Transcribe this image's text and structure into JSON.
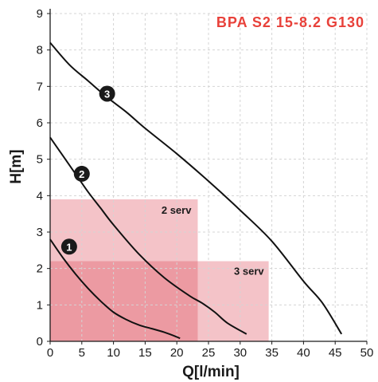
{
  "chart_data": {
    "type": "line",
    "title": "BPA S2 15-8.2 G130",
    "xlabel": "Q[l/min]",
    "ylabel": "H[m]",
    "xlim": [
      0,
      50
    ],
    "ylim": [
      0,
      9
    ],
    "xticks": [
      0,
      5,
      10,
      15,
      20,
      25,
      30,
      35,
      40,
      45,
      50
    ],
    "yticks": [
      0,
      1,
      2,
      3,
      4,
      5,
      6,
      7,
      8,
      9
    ],
    "grid": true,
    "colors": {
      "title": "#e8413a",
      "curve": "#111111",
      "zone_2serv": "#f4c3c8",
      "zone_3serv": "#f4c3c8",
      "zone_overlap": "#ec9aa2",
      "marker": "#1a1a1a"
    },
    "zones": [
      {
        "label": "2 serv",
        "x_max": 23.3,
        "y_max": 3.9
      },
      {
        "label": "3 serv",
        "x_max": 34.5,
        "y_max": 2.2
      }
    ],
    "series": [
      {
        "name": "1",
        "marker_at": [
          3,
          2.6
        ],
        "points": [
          [
            0,
            2.8
          ],
          [
            2,
            2.3
          ],
          [
            4,
            1.85
          ],
          [
            6,
            1.45
          ],
          [
            8,
            1.1
          ],
          [
            10,
            0.8
          ],
          [
            12,
            0.6
          ],
          [
            14,
            0.45
          ],
          [
            16,
            0.35
          ],
          [
            18,
            0.25
          ],
          [
            20,
            0.12
          ],
          [
            20.5,
            0.08
          ]
        ]
      },
      {
        "name": "2",
        "marker_at": [
          5,
          4.6
        ],
        "points": [
          [
            0,
            5.6
          ],
          [
            2,
            5.1
          ],
          [
            4,
            4.6
          ],
          [
            6,
            4.1
          ],
          [
            8,
            3.65
          ],
          [
            10,
            3.2
          ],
          [
            14,
            2.4
          ],
          [
            18,
            1.75
          ],
          [
            22,
            1.25
          ],
          [
            24,
            1.05
          ],
          [
            26,
            0.8
          ],
          [
            28,
            0.5
          ],
          [
            31,
            0.2
          ]
        ]
      },
      {
        "name": "3",
        "marker_at": [
          9,
          6.8
        ],
        "points": [
          [
            0,
            8.2
          ],
          [
            3,
            7.6
          ],
          [
            6,
            7.15
          ],
          [
            9,
            6.7
          ],
          [
            12,
            6.3
          ],
          [
            15,
            5.85
          ],
          [
            20,
            5.15
          ],
          [
            25,
            4.4
          ],
          [
            30,
            3.6
          ],
          [
            35,
            2.75
          ],
          [
            40,
            1.65
          ],
          [
            43,
            1.05
          ],
          [
            46,
            0.2
          ]
        ]
      }
    ]
  }
}
